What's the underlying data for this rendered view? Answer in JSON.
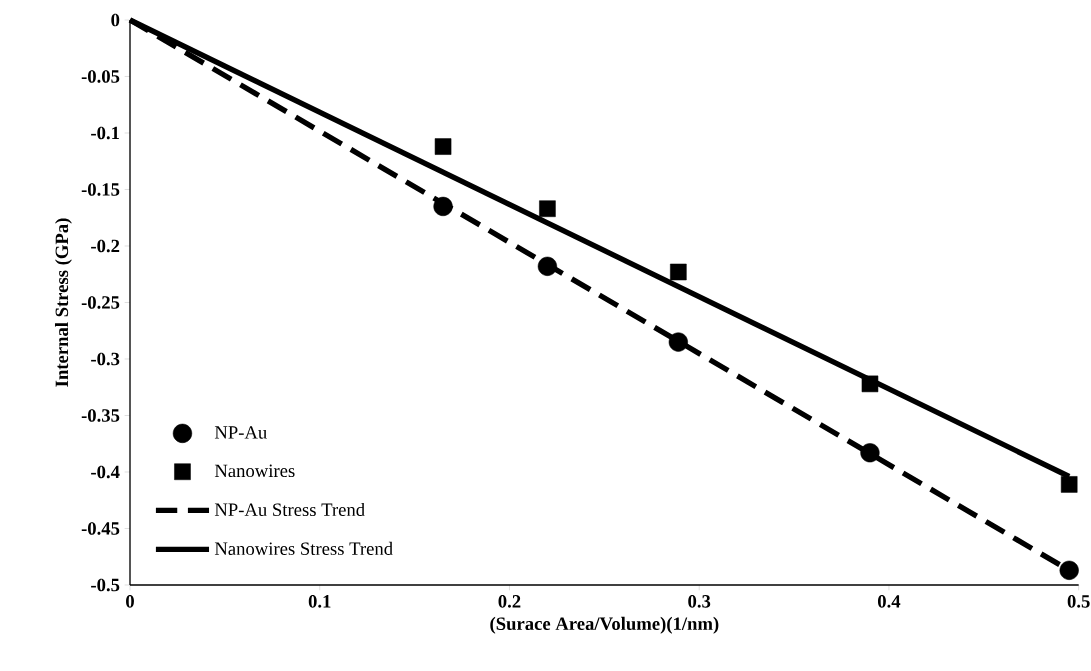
{
  "chart_data": {
    "type": "scatter",
    "xlabel": "(Surace Area/Volume)(1/nm)",
    "ylabel": "Internal Stress (GPa)",
    "xlim": [
      0,
      0.5
    ],
    "ylim": [
      -0.5,
      0
    ],
    "xticks": [
      0,
      0.1,
      0.2,
      0.3,
      0.4,
      0.5
    ],
    "yticks": [
      -0.5,
      -0.45,
      -0.4,
      -0.35,
      -0.3,
      -0.25,
      -0.2,
      -0.15,
      -0.1,
      -0.05,
      0
    ],
    "grid": false,
    "legend": "left",
    "series": [
      {
        "name": "NP-Au",
        "type": "scatter",
        "marker": "circle",
        "color": "#000000",
        "x": [
          0.165,
          0.22,
          0.289,
          0.39,
          0.495
        ],
        "values": [
          -0.165,
          -0.218,
          -0.285,
          -0.383,
          -0.487
        ]
      },
      {
        "name": "Nanowires",
        "type": "scatter",
        "marker": "square",
        "color": "#000000",
        "x": [
          0.165,
          0.22,
          0.289,
          0.39,
          0.495
        ],
        "values": [
          -0.112,
          -0.167,
          -0.223,
          -0.322,
          -0.411
        ]
      },
      {
        "name": "NP-Au Stress Trend",
        "type": "line",
        "line_style": "dashed",
        "color": "#000000",
        "x": [
          0,
          0.495
        ],
        "values": [
          0,
          -0.487
        ]
      },
      {
        "name": "Nanowires Stress Trend",
        "type": "line",
        "line_style": "solid",
        "color": "#000000",
        "x": [
          0,
          0.495
        ],
        "values": [
          0,
          -0.404
        ]
      }
    ]
  }
}
